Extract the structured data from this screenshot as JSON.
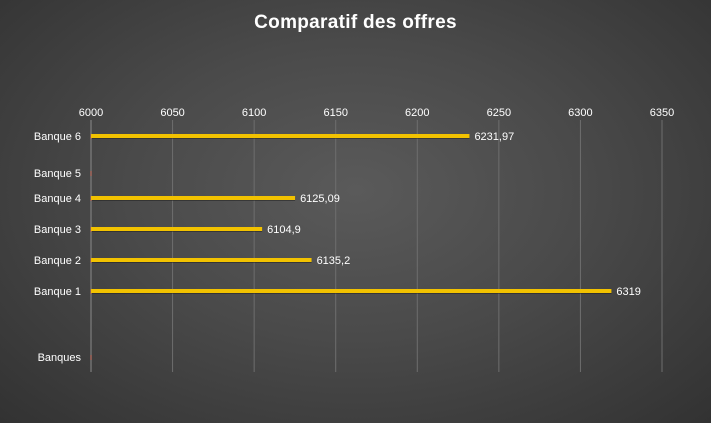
{
  "chart_data": {
    "type": "bar",
    "orientation": "horizontal",
    "title": "Comparatif des offres",
    "categories": [
      "Banques",
      "Banque 1",
      "Banque 2",
      "Banque 3",
      "Banque 4",
      "Banque 5",
      "Banque 6"
    ],
    "values": [
      null,
      6319,
      6135.2,
      6104.9,
      6125.09,
      null,
      6231.97
    ],
    "value_labels": [
      "",
      "6319",
      "6135,2",
      "6104,9",
      "6125,09",
      "",
      "6231,97"
    ],
    "xlim": [
      6000,
      6350
    ],
    "xticks": [
      6000,
      6050,
      6100,
      6150,
      6200,
      6250,
      6300,
      6350
    ],
    "xtick_labels": [
      "6000",
      "6050",
      "6100",
      "6150",
      "6200",
      "6250",
      "6300",
      "6350"
    ],
    "x_axis_position": "top",
    "grid": true,
    "legend": "none",
    "bar_color": "#f2c200",
    "background_color": "#4a4a4a",
    "text_color": "#ffffff"
  }
}
